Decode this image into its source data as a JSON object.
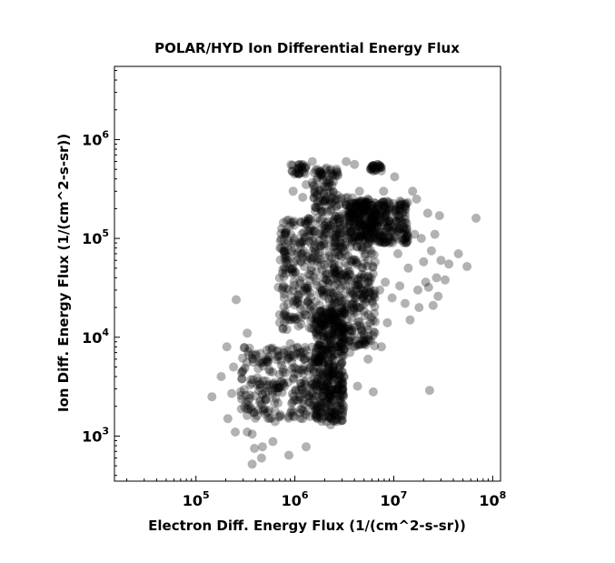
{
  "chart_data": {
    "type": "scatter",
    "title": "POLAR/HYD  Ion Differential Energy Flux",
    "xlabel": "Electron Diff. Energy Flux (1/(cm^2-s-sr))",
    "ylabel": "Ion Diff. Energy Flux (1/(cm^2-s-sr))",
    "x_scale": "log",
    "y_scale": "log",
    "xlim": [
      15000,
      120000000
    ],
    "ylim": [
      350,
      5500000
    ],
    "grid": false,
    "point_color": "#000000",
    "point_opacity": 0.3,
    "x_ticks": [
      {
        "value": 100000,
        "base": "10",
        "exp": "5"
      },
      {
        "value": 1000000,
        "base": "10",
        "exp": "6"
      },
      {
        "value": 10000000,
        "base": "10",
        "exp": "7"
      },
      {
        "value": 100000000,
        "base": "10",
        "exp": "8"
      }
    ],
    "y_ticks": [
      {
        "value": 1000,
        "base": "10",
        "exp": "3"
      },
      {
        "value": 10000,
        "base": "10",
        "exp": "4"
      },
      {
        "value": 100000,
        "base": "10",
        "exp": "5"
      },
      {
        "value": 1000000,
        "base": "10",
        "exp": "6"
      }
    ],
    "points": [
      [
        145000,
        2500
      ],
      [
        180000,
        4000
      ],
      [
        205000,
        8000
      ],
      [
        210000,
        1500
      ],
      [
        230000,
        2700
      ],
      [
        240000,
        5000
      ],
      [
        250000,
        1100
      ],
      [
        255000,
        24000
      ],
      [
        290000,
        3800
      ],
      [
        310000,
        7800
      ],
      [
        330000,
        11000
      ],
      [
        330000,
        1100
      ],
      [
        370000,
        520
      ],
      [
        370000,
        1050
      ],
      [
        390000,
        750
      ],
      [
        460000,
        600
      ],
      [
        470000,
        780
      ],
      [
        480000,
        1800
      ],
      [
        600000,
        880
      ],
      [
        630000,
        1400
      ],
      [
        700000,
        4200
      ],
      [
        740000,
        3600
      ],
      [
        800000,
        18000
      ],
      [
        830000,
        12000
      ],
      [
        870000,
        640
      ],
      [
        900000,
        8600
      ],
      [
        950000,
        550000
      ],
      [
        960000,
        300000
      ],
      [
        1200000,
        260000
      ],
      [
        1200000,
        1500
      ],
      [
        1300000,
        780
      ],
      [
        1300000,
        350000
      ],
      [
        1500000,
        600000
      ],
      [
        1700000,
        5000
      ],
      [
        1800000,
        300000
      ],
      [
        2000000,
        1800
      ],
      [
        2100000,
        1400
      ],
      [
        2200000,
        2100
      ],
      [
        2300000,
        1300
      ],
      [
        2400000,
        2000
      ],
      [
        2600000,
        3000
      ],
      [
        2800000,
        2600
      ],
      [
        3000000,
        6400
      ],
      [
        3000000,
        2900
      ],
      [
        3200000,
        24000
      ],
      [
        3300000,
        600000
      ],
      [
        3400000,
        260000
      ],
      [
        3500000,
        13000
      ],
      [
        3600000,
        7000
      ],
      [
        3700000,
        10000
      ],
      [
        4000000,
        560000
      ],
      [
        4200000,
        18000
      ],
      [
        4300000,
        3200
      ],
      [
        4500000,
        300000
      ],
      [
        4800000,
        240000
      ],
      [
        5000000,
        24000
      ],
      [
        5200000,
        230000
      ],
      [
        5500000,
        6000
      ],
      [
        5800000,
        14000
      ],
      [
        6200000,
        2800
      ],
      [
        6500000,
        180000
      ],
      [
        6800000,
        560000
      ],
      [
        7200000,
        30000
      ],
      [
        7500000,
        8000
      ],
      [
        7900000,
        300000
      ],
      [
        8200000,
        36000
      ],
      [
        8600000,
        14000
      ],
      [
        9100000,
        210000
      ],
      [
        9600000,
        25000
      ],
      [
        10200000,
        420000
      ],
      [
        10800000,
        200000
      ],
      [
        11500000,
        33000
      ],
      [
        12200000,
        180000
      ],
      [
        13000000,
        22000
      ],
      [
        13800000,
        230000
      ],
      [
        14600000,
        15000
      ],
      [
        15500000,
        300000
      ],
      [
        16200000,
        110000
      ],
      [
        17000000,
        250000
      ],
      [
        17500000,
        30000
      ],
      [
        18000000,
        20000
      ],
      [
        19000000,
        100000
      ],
      [
        20000000,
        58000
      ],
      [
        21000000,
        36000
      ],
      [
        22000000,
        180000
      ],
      [
        22500000,
        32000
      ],
      [
        23000000,
        2900
      ],
      [
        24000000,
        75000
      ],
      [
        25000000,
        21000
      ],
      [
        26000000,
        110000
      ],
      [
        27000000,
        40000
      ],
      [
        28000000,
        26000
      ],
      [
        29000000,
        170000
      ],
      [
        30000000,
        60000
      ],
      [
        33000000,
        38000
      ],
      [
        36000000,
        55000
      ],
      [
        45000000,
        70000
      ],
      [
        55000000,
        52000
      ],
      [
        68000000,
        160000
      ],
      [
        850000,
        90000
      ],
      [
        1000000,
        45000
      ],
      [
        1150000,
        70000
      ],
      [
        1400000,
        120000
      ],
      [
        1600000,
        85000
      ],
      [
        2500000,
        50000
      ],
      [
        2900000,
        80000
      ],
      [
        3800000,
        150000
      ],
      [
        5500000,
        60000
      ],
      [
        9000000,
        90000
      ],
      [
        11000000,
        70000
      ],
      [
        14000000,
        50000
      ],
      [
        780000,
        25000
      ],
      [
        680000,
        32000
      ],
      [
        560000,
        4500
      ],
      [
        420000,
        3300
      ],
      [
        380000,
        5600
      ],
      [
        350000,
        2600
      ],
      [
        440000,
        2200
      ],
      [
        520000,
        3100
      ],
      [
        640000,
        2400
      ],
      [
        1050000,
        2300
      ],
      [
        1250000,
        3500
      ],
      [
        2300000,
        15000
      ],
      [
        2700000,
        35000
      ]
    ],
    "dense_regions": [
      {
        "xmin": 280000,
        "xmax": 2300000,
        "ymin": 1500,
        "ymax": 8000,
        "count": 260
      },
      {
        "xmin": 1600000,
        "xmax": 3200000,
        "ymin": 1400,
        "ymax": 20000,
        "count": 360
      },
      {
        "xmin": 2500000,
        "xmax": 6500000,
        "ymin": 8000,
        "ymax": 260000,
        "count": 360
      },
      {
        "xmin": 700000,
        "xmax": 2600000,
        "ymin": 12000,
        "ymax": 160000,
        "count": 320
      },
      {
        "xmin": 3500000,
        "xmax": 14000000,
        "ymin": 90000,
        "ymax": 240000,
        "count": 300
      },
      {
        "xmin": 1500000,
        "xmax": 2800000,
        "ymin": 180000,
        "ymax": 520000,
        "count": 90
      },
      {
        "xmin": 880000,
        "xmax": 1300000,
        "ymin": 440000,
        "ymax": 560000,
        "count": 25
      },
      {
        "xmin": 5800000,
        "xmax": 7500000,
        "ymin": 480000,
        "ymax": 560000,
        "count": 25
      }
    ]
  }
}
